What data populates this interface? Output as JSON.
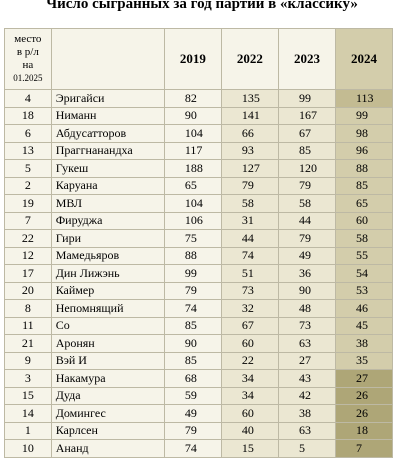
{
  "title": "Число сыгранных за год партий в «классику»",
  "table": {
    "header": {
      "rank": [
        "место",
        "в р/л",
        "на",
        "01.2025"
      ],
      "years": [
        "2019",
        "2022",
        "2023",
        "2024"
      ]
    },
    "rows": [
      [
        "4",
        "Эригайси",
        "82",
        "135",
        "99",
        "113"
      ],
      [
        "18",
        "Ниманн",
        "90",
        "141",
        "167",
        "99"
      ],
      [
        "6",
        "Абдусатторов",
        "104",
        "66",
        "67",
        "98"
      ],
      [
        "13",
        "Праггнанандха",
        "117",
        "93",
        "85",
        "96"
      ],
      [
        "5",
        "Гукеш",
        "188",
        "127",
        "120",
        "88"
      ],
      [
        "2",
        "Каруана",
        "65",
        "79",
        "79",
        "85"
      ],
      [
        "19",
        "МВЛ",
        "104",
        "58",
        "58",
        "65"
      ],
      [
        "7",
        "Фируджа",
        "106",
        "31",
        "44",
        "60"
      ],
      [
        "22",
        "Гири",
        "75",
        "44",
        "79",
        "58"
      ],
      [
        "12",
        "Мамедьяров",
        "88",
        "74",
        "49",
        "55"
      ],
      [
        "17",
        "Дин Лижэнь",
        "99",
        "51",
        "36",
        "54"
      ],
      [
        "20",
        "Каймер",
        "79",
        "73",
        "90",
        "53"
      ],
      [
        "8",
        "Непомнящий",
        "74",
        "32",
        "48",
        "46"
      ],
      [
        "11",
        "Со",
        "85",
        "67",
        "73",
        "45"
      ],
      [
        "21",
        "Аронян",
        "90",
        "60",
        "63",
        "38"
      ],
      [
        "9",
        "Вэй И",
        "85",
        "22",
        "27",
        "35"
      ],
      [
        "3",
        "Накамура",
        "68",
        "34",
        "43",
        "27"
      ],
      [
        "15",
        "Дуда",
        "59",
        "34",
        "42",
        "26"
      ],
      [
        "14",
        "Домингес",
        "49",
        "60",
        "38",
        "26"
      ],
      [
        "1",
        "Карлсен",
        "79",
        "40",
        "63",
        "18"
      ],
      [
        "10",
        "Ананд",
        "74",
        "15",
        "5",
        "7"
      ]
    ]
  }
}
